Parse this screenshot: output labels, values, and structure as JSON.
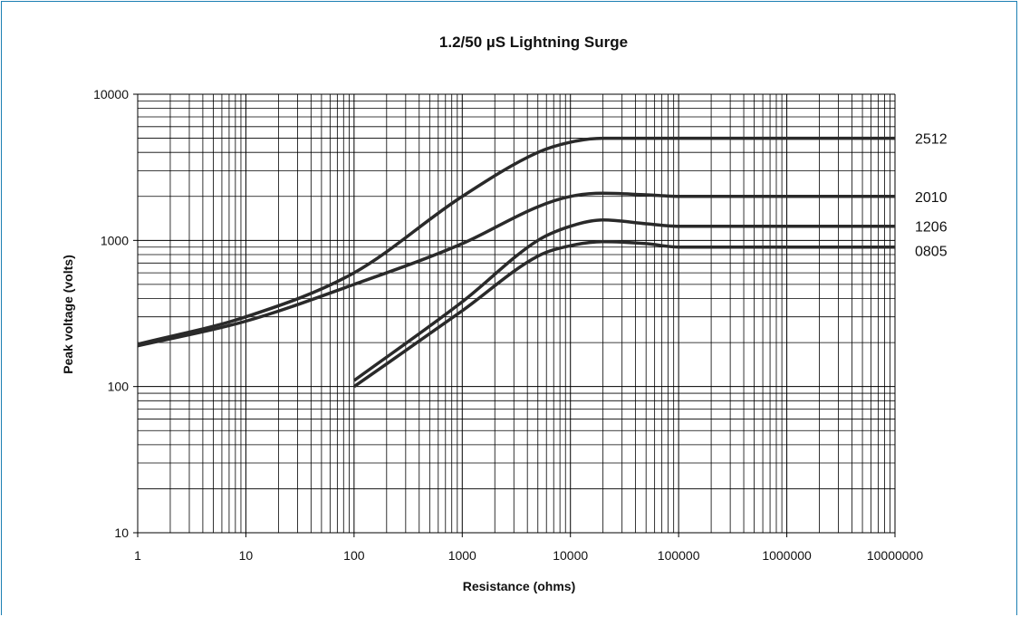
{
  "chart_data": {
    "type": "line",
    "title": "1.2/50 µS Lightning Surge",
    "xlabel": "Resistance (ohms)",
    "ylabel": "Peak voltage (volts)",
    "xscale": "log",
    "yscale": "log",
    "xlim": [
      1,
      10000000
    ],
    "ylim": [
      10,
      10000
    ],
    "grid": true,
    "xticks": [
      "1",
      "10",
      "100",
      "1000",
      "10000",
      "100000",
      "1000000",
      "10000000"
    ],
    "yticks": [
      "10",
      "100",
      "1000",
      "10000"
    ],
    "series": [
      {
        "name": "2512",
        "x": [
          1,
          10,
          100,
          1000,
          5000,
          10000,
          20000,
          50000,
          100000,
          1000000,
          10000000
        ],
        "y": [
          195,
          300,
          600,
          2000,
          4000,
          4700,
          5000,
          5000,
          5000,
          5000,
          5000
        ]
      },
      {
        "name": "2010",
        "x": [
          1,
          10,
          100,
          1000,
          5000,
          10000,
          20000,
          50000,
          100000,
          1000000,
          10000000
        ],
        "y": [
          190,
          280,
          500,
          950,
          1700,
          2000,
          2100,
          2050,
          2000,
          2000,
          2000
        ]
      },
      {
        "name": "1206",
        "x": [
          100,
          1000,
          5000,
          10000,
          20000,
          50000,
          100000,
          1000000,
          10000000
        ],
        "y": [
          110,
          380,
          1000,
          1250,
          1380,
          1300,
          1250,
          1250,
          1250
        ]
      },
      {
        "name": "0805",
        "x": [
          100,
          1000,
          5000,
          10000,
          20000,
          50000,
          100000,
          1000000,
          10000000
        ],
        "y": [
          100,
          330,
          780,
          920,
          980,
          950,
          900,
          900,
          900
        ]
      }
    ]
  }
}
